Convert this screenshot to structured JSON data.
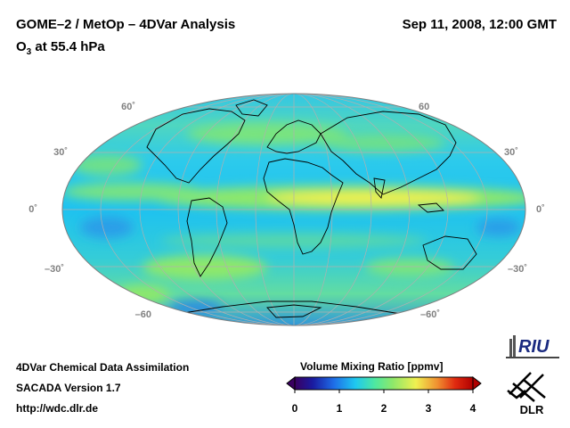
{
  "header": {
    "title": "GOME–2 / MetOp – 4DVar Analysis",
    "species": "O",
    "species_sub": "3",
    "level": " at 55.4 hPa",
    "date": "Sep 11, 2008, 12:00 GMT"
  },
  "map": {
    "projection": "mollweide",
    "lat_labels_left": [
      "60˚",
      "30˚",
      "0˚",
      "–30˚",
      "–60"
    ],
    "lat_labels_right": [
      "60",
      "30˚",
      "0˚",
      "–30˚",
      "–60˚"
    ],
    "colors": {
      "background": "#1ec8f0",
      "green_band": "#8ee86a",
      "yellow_band": "#f0f050",
      "blue_low": "#2a8ee0",
      "coast": "#000000",
      "grid": "#b0b0b0"
    }
  },
  "footer": {
    "line1": "4DVar Chemical Data Assimilation",
    "line2": "SACADA Version 1.7",
    "line3": "http://wdc.dlr.de"
  },
  "colorbar": {
    "title": "Volume Mixing Ratio [ppmv]",
    "ticks": [
      "0",
      "1",
      "2",
      "3",
      "4"
    ],
    "range": [
      0,
      4
    ],
    "colors": [
      "#3a0060",
      "#1a1aa0",
      "#1e6ee8",
      "#1ec8f0",
      "#4ee8a0",
      "#8ee86a",
      "#f0f050",
      "#f09030",
      "#e02a10",
      "#b00000"
    ]
  },
  "logos": {
    "riu": "RIU",
    "dlr": "DLR"
  }
}
